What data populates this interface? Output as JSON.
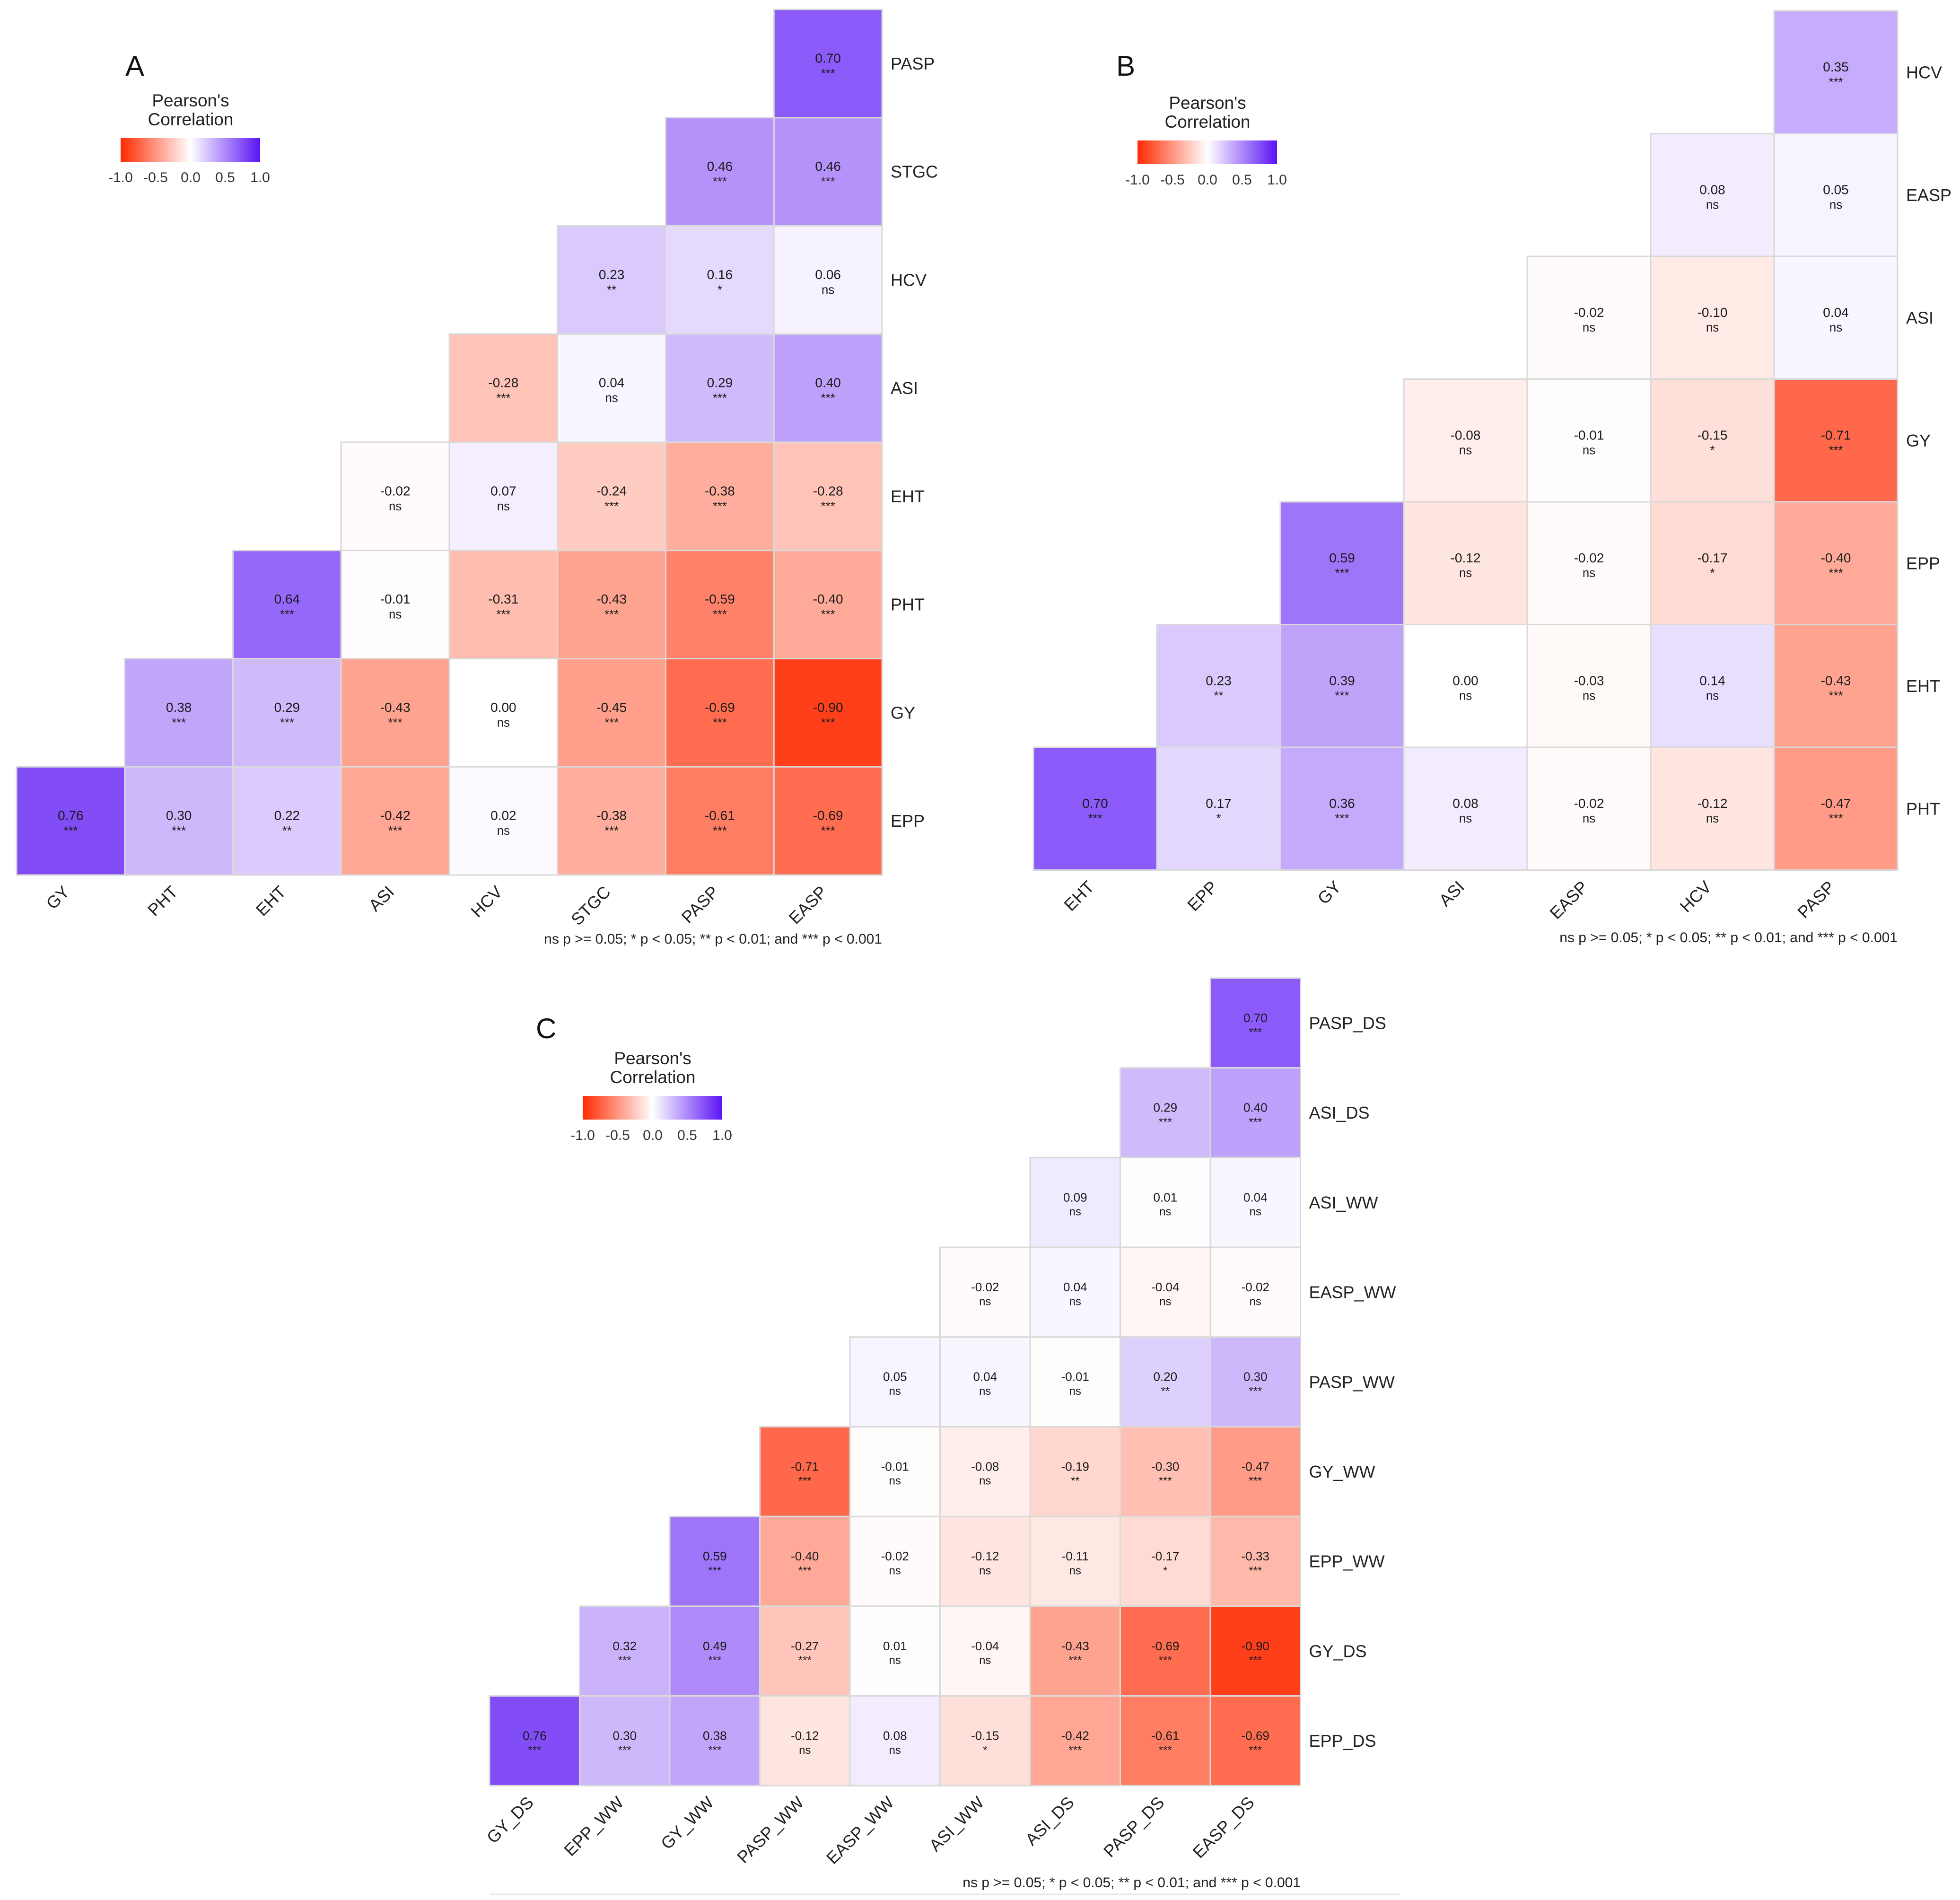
{
  "legend": {
    "title_line1": "Pearson's",
    "title_line2": "Correlation",
    "ticks": [
      "-1.0",
      "-0.5",
      "0.0",
      "0.5",
      "1.0"
    ]
  },
  "chart_data": [
    {
      "panel": "A",
      "type": "heatmap",
      "note": "ns p >= 0.05; * p < 0.05; ** p < 0.01; and *** p < 0.001",
      "x_labels": [
        "GY",
        "PHT",
        "EHT",
        "ASI",
        "HCV",
        "STGC",
        "PASP",
        "EASP"
      ],
      "y_labels": [
        "PASP",
        "STGC",
        "HCV",
        "ASI",
        "EHT",
        "PHT",
        "GY",
        "EPP"
      ],
      "values": [
        [
          null,
          null,
          null,
          null,
          null,
          null,
          null,
          0.7
        ],
        [
          null,
          null,
          null,
          null,
          null,
          null,
          0.46,
          0.46
        ],
        [
          null,
          null,
          null,
          null,
          null,
          0.23,
          0.16,
          0.06
        ],
        [
          null,
          null,
          null,
          null,
          -0.28,
          0.04,
          0.29,
          0.4
        ],
        [
          null,
          null,
          null,
          -0.02,
          0.07,
          -0.24,
          -0.38,
          -0.28
        ],
        [
          null,
          null,
          0.64,
          -0.01,
          -0.31,
          -0.43,
          -0.59,
          -0.4
        ],
        [
          null,
          0.38,
          0.29,
          -0.43,
          0.0,
          -0.45,
          -0.69,
          -0.9
        ],
        [
          0.76,
          0.3,
          0.22,
          -0.42,
          0.02,
          -0.38,
          -0.61,
          -0.69
        ]
      ],
      "significance": [
        [
          null,
          null,
          null,
          null,
          null,
          null,
          null,
          "***"
        ],
        [
          null,
          null,
          null,
          null,
          null,
          null,
          "***",
          "***"
        ],
        [
          null,
          null,
          null,
          null,
          null,
          "**",
          "*",
          "ns"
        ],
        [
          null,
          null,
          null,
          null,
          "***",
          "ns",
          "***",
          "***"
        ],
        [
          null,
          null,
          null,
          "ns",
          "ns",
          "***",
          "***",
          "***"
        ],
        [
          null,
          null,
          "***",
          "ns",
          "***",
          "***",
          "***",
          "***"
        ],
        [
          null,
          "***",
          "***",
          "***",
          "ns",
          "***",
          "***",
          "***"
        ],
        [
          "***",
          "***",
          "**",
          "***",
          "ns",
          "***",
          "***",
          "***"
        ]
      ],
      "color_scale": {
        "min": -1,
        "max": 1,
        "low": "#ff2a00",
        "mid": "#ffffff",
        "high": "#5b13f5"
      }
    },
    {
      "panel": "B",
      "type": "heatmap",
      "note": "ns p >= 0.05; * p < 0.05; ** p < 0.01; and *** p < 0.001",
      "x_labels": [
        "EHT",
        "EPP",
        "GY",
        "ASI",
        "EASP",
        "HCV",
        "PASP"
      ],
      "y_labels": [
        "HCV",
        "EASP",
        "ASI",
        "GY",
        "EPP",
        "EHT",
        "PHT"
      ],
      "values": [
        [
          null,
          null,
          null,
          null,
          null,
          null,
          0.35
        ],
        [
          null,
          null,
          null,
          null,
          null,
          0.08,
          0.05
        ],
        [
          null,
          null,
          null,
          null,
          -0.02,
          -0.1,
          0.04
        ],
        [
          null,
          null,
          null,
          -0.08,
          -0.01,
          -0.15,
          -0.71
        ],
        [
          null,
          null,
          0.59,
          -0.12,
          -0.02,
          -0.17,
          -0.4
        ],
        [
          null,
          0.23,
          0.39,
          0.0,
          -0.03,
          0.14,
          -0.43
        ],
        [
          0.7,
          0.17,
          0.36,
          0.08,
          -0.02,
          -0.12,
          -0.47
        ]
      ],
      "significance": [
        [
          null,
          null,
          null,
          null,
          null,
          null,
          "***"
        ],
        [
          null,
          null,
          null,
          null,
          null,
          "ns",
          "ns"
        ],
        [
          null,
          null,
          null,
          null,
          "ns",
          "ns",
          "ns"
        ],
        [
          null,
          null,
          null,
          "ns",
          "ns",
          "*",
          "***"
        ],
        [
          null,
          null,
          "***",
          "ns",
          "ns",
          "*",
          "***"
        ],
        [
          null,
          "**",
          "***",
          "ns",
          "ns",
          "ns",
          "***"
        ],
        [
          "***",
          "*",
          "***",
          "ns",
          "ns",
          "ns",
          "***"
        ]
      ],
      "color_scale": {
        "min": -1,
        "max": 1,
        "low": "#ff2a00",
        "mid": "#ffffff",
        "high": "#5b13f5"
      }
    },
    {
      "panel": "C",
      "type": "heatmap",
      "note": "ns p >= 0.05; * p < 0.05; ** p < 0.01; and *** p < 0.001",
      "x_labels": [
        "GY_DS",
        "EPP_WW",
        "GY_WW",
        "PASP_WW",
        "EASP_WW",
        "ASI_WW",
        "ASI_DS",
        "PASP_DS",
        "EASP_DS"
      ],
      "y_labels": [
        "PASP_DS",
        "ASI_DS",
        "ASI_WW",
        "EASP_WW",
        "PASP_WW",
        "GY_WW",
        "EPP_WW",
        "GY_DS",
        "EPP_DS"
      ],
      "values": [
        [
          null,
          null,
          null,
          null,
          null,
          null,
          null,
          null,
          0.7
        ],
        [
          null,
          null,
          null,
          null,
          null,
          null,
          null,
          0.29,
          0.4
        ],
        [
          null,
          null,
          null,
          null,
          null,
          null,
          0.09,
          0.01,
          0.04
        ],
        [
          null,
          null,
          null,
          null,
          null,
          -0.02,
          0.04,
          -0.04,
          -0.02
        ],
        [
          null,
          null,
          null,
          null,
          0.05,
          0.04,
          -0.01,
          0.2,
          0.3
        ],
        [
          null,
          null,
          null,
          -0.71,
          -0.01,
          -0.08,
          -0.19,
          -0.3,
          -0.47
        ],
        [
          null,
          null,
          0.59,
          -0.4,
          -0.02,
          -0.12,
          -0.11,
          -0.17,
          -0.33
        ],
        [
          null,
          0.32,
          0.49,
          -0.27,
          0.01,
          -0.04,
          -0.43,
          -0.69,
          -0.9
        ],
        [
          0.76,
          0.3,
          0.38,
          -0.12,
          0.08,
          -0.15,
          -0.42,
          -0.61,
          -0.69
        ]
      ],
      "significance": [
        [
          null,
          null,
          null,
          null,
          null,
          null,
          null,
          null,
          "***"
        ],
        [
          null,
          null,
          null,
          null,
          null,
          null,
          null,
          "***",
          "***"
        ],
        [
          null,
          null,
          null,
          null,
          null,
          null,
          "ns",
          "ns",
          "ns"
        ],
        [
          null,
          null,
          null,
          null,
          null,
          "ns",
          "ns",
          "ns",
          "ns"
        ],
        [
          null,
          null,
          null,
          null,
          "ns",
          "ns",
          "ns",
          "**",
          "***"
        ],
        [
          null,
          null,
          null,
          "***",
          "ns",
          "ns",
          "**",
          "***",
          "***"
        ],
        [
          null,
          null,
          "***",
          "***",
          "ns",
          "ns",
          "ns",
          "*",
          "***"
        ],
        [
          null,
          "***",
          "***",
          "***",
          "ns",
          "ns",
          "***",
          "***",
          "***"
        ],
        [
          "***",
          "***",
          "***",
          "ns",
          "ns",
          "*",
          "***",
          "***",
          "***"
        ]
      ],
      "color_scale": {
        "min": -1,
        "max": 1,
        "low": "#ff2a00",
        "mid": "#ffffff",
        "high": "#5b13f5"
      }
    }
  ]
}
